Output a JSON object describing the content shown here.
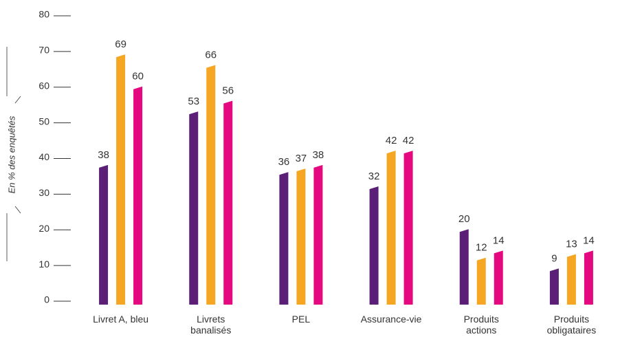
{
  "chart_data": {
    "type": "bar",
    "y_label": "En % des enquêtés",
    "categories": [
      [
        "Livret A, bleu"
      ],
      [
        "Livrets",
        "banalisés"
      ],
      [
        "PEL"
      ],
      [
        "Assurance-vie"
      ],
      [
        "Produits",
        "actions"
      ],
      [
        "Produits",
        "obligataires"
      ]
    ],
    "series": [
      {
        "color": "#5b1f78",
        "values": [
          38,
          53,
          36,
          32,
          20,
          9
        ]
      },
      {
        "color": "#f5a623",
        "values": [
          69,
          66,
          37,
          42,
          12,
          13
        ]
      },
      {
        "color": "#e5097f",
        "values": [
          60,
          56,
          38,
          42,
          14,
          14
        ]
      }
    ],
    "ylim": [
      0,
      80
    ],
    "yticks": [
      0,
      10,
      20,
      30,
      40,
      50,
      60,
      70,
      80
    ]
  }
}
